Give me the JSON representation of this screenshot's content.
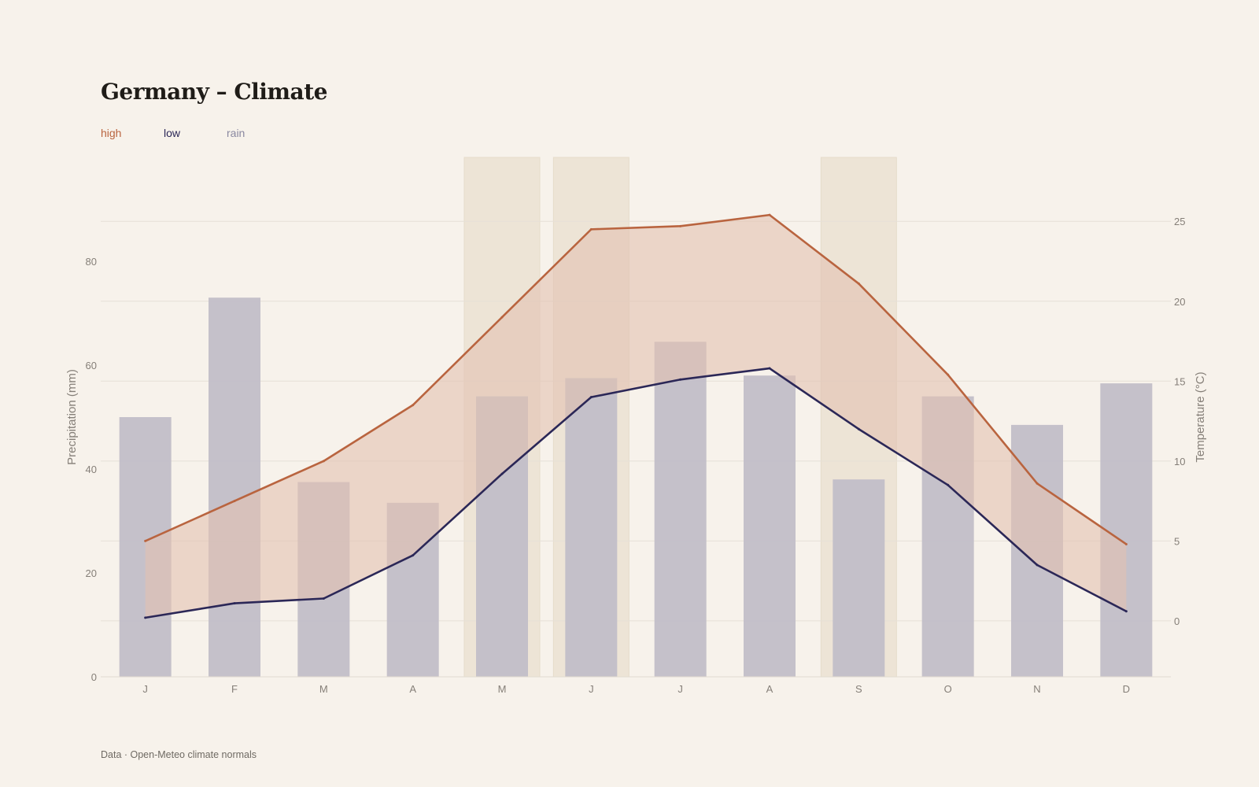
{
  "chart": {
    "title": "Germany – Climate",
    "footer": "Data · Open-Meteo climate normals"
  },
  "legend": [
    {
      "label": "high",
      "color": "#b9643f"
    },
    {
      "label": "low",
      "color": "#2b2757"
    },
    {
      "label": "rain",
      "color": "#8a88a0"
    }
  ],
  "chart_data": {
    "type": "bar",
    "title": "Germany – Climate",
    "categories": [
      "J",
      "F",
      "M",
      "A",
      "M",
      "J",
      "J",
      "A",
      "S",
      "O",
      "N",
      "D"
    ],
    "series": [
      {
        "name": "rain",
        "type": "bar",
        "axis": "left",
        "color": "#c2bec8",
        "values": [
          50,
          73,
          37.5,
          33.5,
          54,
          57.5,
          64.5,
          58,
          38,
          54,
          48.5,
          56.5
        ]
      },
      {
        "name": "high",
        "type": "line",
        "axis": "right",
        "color": "#b9643f",
        "values": [
          5,
          7.5,
          10,
          13.5,
          19,
          24.5,
          24.7,
          25.4,
          21.1,
          15.4,
          8.6,
          4.8
        ]
      },
      {
        "name": "low",
        "type": "line",
        "axis": "right",
        "color": "#2b2757",
        "values": [
          0.2,
          1.1,
          1.4,
          4.1,
          9.2,
          14,
          15.1,
          15.8,
          12,
          8.5,
          3.5,
          0.6
        ]
      }
    ],
    "band_between": [
      "low",
      "high"
    ],
    "band_color": "#e2c2b0",
    "highlighted_months": [
      4,
      5,
      8
    ],
    "highlight_color": "#ede4d6",
    "ylabel_left": "Precipitation (mm)",
    "ylabel_right": "Temperature (°C)",
    "ylim_left": [
      0,
      100
    ],
    "ylim_right": [
      -3.5,
      29
    ],
    "yticks_left": [
      0,
      20,
      40,
      60,
      80
    ],
    "yticks_right": [
      0,
      5,
      10,
      15,
      20,
      25
    ],
    "grid": true
  }
}
